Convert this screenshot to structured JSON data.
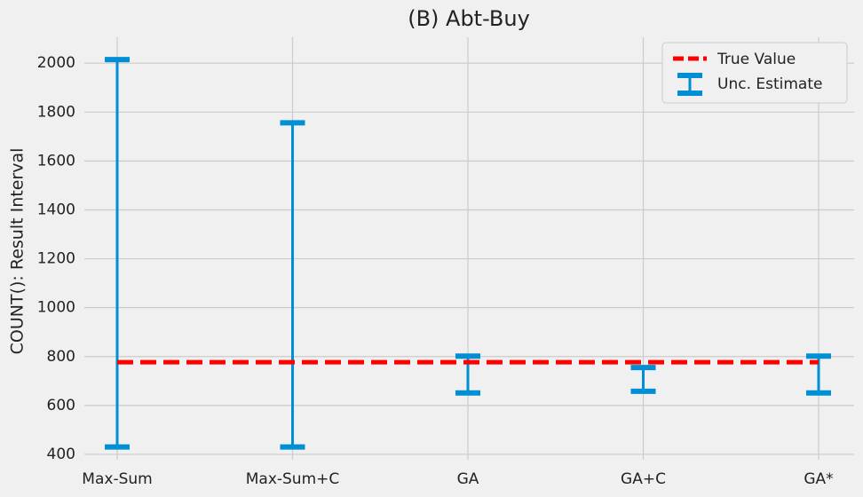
{
  "chart_data": {
    "type": "errorbar",
    "title": "(B) Abt-Buy",
    "y_label": "COUNT(): Result Interval",
    "categories": [
      "Max-Sum",
      "Max-Sum+C",
      "GA",
      "GA+C",
      "GA*"
    ],
    "series": [
      {
        "name": "Unc. Estimate",
        "color": "#008fd5",
        "low": [
          430,
          430,
          651,
          658,
          651
        ],
        "high": [
          2015,
          1756,
          802,
          755,
          802
        ]
      }
    ],
    "true_value": {
      "name": "True Value",
      "color": "#ff0000",
      "value": 777
    },
    "ylim": [
      378,
      2106
    ],
    "yticks": [
      400,
      600,
      800,
      1000,
      1200,
      1400,
      1600,
      1800,
      2000
    ],
    "grid": true,
    "legend": "upper-right"
  }
}
